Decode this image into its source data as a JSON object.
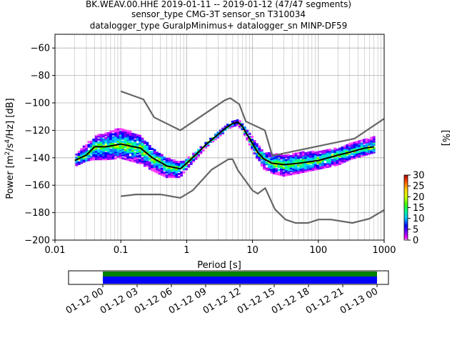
{
  "figure": {
    "title_lines": [
      "BK.WEAV.00.HHE   2019-01-11 -- 2019-01-12  (47/47 segments)",
      "sensor_type CMG-3T sensor_sn T310034",
      "datalogger_type GuralpMinimus+ datalogger_sn MINP-DF59"
    ]
  },
  "chart_data": {
    "type": "heatmap",
    "xlabel": "Period [s]",
    "ylabel_parts": [
      "Power [m",
      "2",
      "/s",
      "4",
      "/Hz] [dB]"
    ],
    "x_scale": "log",
    "xlim": [
      0.01,
      1000
    ],
    "ylim": [
      -200,
      -50
    ],
    "x_ticks": [
      0.01,
      0.1,
      1,
      10,
      100,
      1000
    ],
    "x_tick_labels": [
      "0.01",
      "0.1",
      "1",
      "10",
      "100",
      "1000"
    ],
    "y_ticks": [
      -200,
      -180,
      -160,
      -140,
      -120,
      -100,
      -80,
      -60
    ],
    "y_tick_labels": [
      "−200",
      "−180",
      "−160",
      "−140",
      "−120",
      "−100",
      "−80",
      "−60"
    ],
    "grid": true,
    "colorbar": {
      "label": "[%]",
      "min": 0,
      "max": 30,
      "ticks": [
        0,
        5,
        10,
        15,
        20,
        25,
        30
      ],
      "tick_labels": [
        "0",
        "5",
        "10",
        "15",
        "20",
        "25",
        "30"
      ]
    },
    "mode_curve": {
      "period": [
        0.02,
        0.03,
        0.04,
        0.06,
        0.1,
        0.2,
        0.3,
        0.5,
        0.8,
        1.0,
        1.5,
        2.0,
        3.0,
        4.0,
        5.0,
        6.0,
        7.0,
        9.0,
        12.0,
        15.0,
        20.0,
        30.0,
        50.0,
        100.0,
        200.0,
        300.0,
        500.0,
        700.0
      ],
      "power": [
        -142,
        -138,
        -132,
        -132,
        -130,
        -133,
        -140,
        -146,
        -148,
        -144,
        -136,
        -130,
        -123,
        -118,
        -115,
        -114,
        -117,
        -126,
        -136,
        -141,
        -144,
        -145,
        -144,
        -142,
        -138,
        -136,
        -133,
        -132
      ]
    },
    "spread_band": {
      "period": [
        0.02,
        0.03,
        0.04,
        0.06,
        0.1,
        0.2,
        0.3,
        0.5,
        0.8,
        1.0,
        1.5,
        2.0,
        3.0,
        4.0,
        5.0,
        6.0,
        7.0,
        9.0,
        12.0,
        15.0,
        20.0,
        30.0,
        50.0,
        100.0,
        200.0,
        300.0,
        500.0,
        700.0
      ],
      "upper": [
        -138,
        -130,
        -124,
        -122,
        -118,
        -124,
        -133,
        -140,
        -143,
        -141,
        -134,
        -128,
        -121,
        -116,
        -113,
        -112,
        -115,
        -122,
        -130,
        -136,
        -137,
        -138,
        -136,
        -135,
        -133,
        -130,
        -127,
        -125
      ],
      "lower": [
        -146,
        -142,
        -141,
        -141,
        -140,
        -144,
        -149,
        -154,
        -154,
        -148,
        -139,
        -132,
        -125,
        -120,
        -117,
        -116,
        -120,
        -130,
        -141,
        -148,
        -151,
        -153,
        -151,
        -148,
        -145,
        -141,
        -138,
        -136
      ]
    },
    "noise_models": {
      "high": {
        "period": [
          0.1,
          0.22,
          0.32,
          0.8,
          3.8,
          4.6,
          6.3,
          7.9,
          15.4,
          20.0,
          354.8,
          1000.0
        ],
        "power": [
          -91.5,
          -97.4,
          -110.5,
          -120.0,
          -98.0,
          -96.5,
          -101.0,
          -113.5,
          -120.0,
          -138.5,
          -126.0,
          -111.5
        ]
      },
      "low": {
        "period": [
          0.1,
          0.17,
          0.4,
          0.8,
          1.24,
          2.4,
          4.3,
          5.0,
          6.0,
          10.0,
          12.0,
          15.6,
          21.9,
          31.6,
          45.0,
          70.0,
          101.0,
          154.0,
          328.0,
          600.0,
          1000.0
        ],
        "power": [
          -168.0,
          -166.7,
          -166.7,
          -169.2,
          -163.7,
          -148.6,
          -141.1,
          -141.1,
          -149.0,
          -163.8,
          -166.2,
          -162.1,
          -177.5,
          -185.0,
          -187.5,
          -187.5,
          -185.0,
          -185.0,
          -187.5,
          -184.4,
          -178.0
        ]
      }
    }
  },
  "timeline": {
    "tick_labels": [
      "01-12 00",
      "01-12 03",
      "01-12 06",
      "01-12 09",
      "01-12 12",
      "01-12 15",
      "01-12 18",
      "01-12 21",
      "01-13 00"
    ],
    "coverage_start_hour": 0,
    "coverage_end_hour": 24,
    "range_hours": [
      -3,
      25
    ],
    "top_band_color": "#008000",
    "bottom_band_color": "#0000ff"
  },
  "colors": {
    "mode_line": "#000000",
    "noise_model": "#666666",
    "grid": "#b0b0b0"
  }
}
